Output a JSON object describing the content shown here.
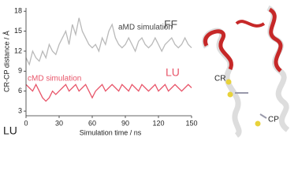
{
  "chart_data": {
    "type": "line",
    "xlabel": "Simulation time / ns",
    "ylabel": "CR-CP distance / Å",
    "x": [
      0,
      3,
      6,
      9,
      12,
      15,
      18,
      21,
      24,
      27,
      30,
      33,
      36,
      39,
      42,
      45,
      48,
      51,
      54,
      57,
      60,
      63,
      66,
      69,
      72,
      75,
      78,
      81,
      84,
      87,
      90,
      93,
      96,
      99,
      102,
      105,
      108,
      111,
      114,
      117,
      120,
      123,
      126,
      129,
      132,
      135,
      138,
      141,
      144,
      147,
      150
    ],
    "series": [
      {
        "name": "aMD simulation",
        "color": "#b9b9b9",
        "values": [
          11,
          10,
          12,
          11,
          10.5,
          12,
          11,
          13,
          12,
          11.5,
          13,
          14,
          15,
          13,
          16,
          14.5,
          17,
          15,
          14,
          13,
          12.5,
          13,
          12,
          14,
          13,
          15,
          16,
          14,
          13,
          12.5,
          13,
          14,
          13,
          12,
          13.5,
          14,
          13,
          12.5,
          13,
          14,
          13,
          12,
          13,
          13.5,
          14,
          13,
          12.5,
          13,
          14,
          13,
          12.5
        ]
      },
      {
        "name": "cMD simulation",
        "color": "#e8566a",
        "values": [
          7,
          6.5,
          6,
          7,
          6,
          5,
          4.5,
          5,
          6,
          5.5,
          6,
          6.5,
          7,
          6,
          6.5,
          7,
          6,
          6.5,
          7,
          6,
          5,
          6,
          6.5,
          7,
          6,
          6.5,
          7,
          6.5,
          6,
          7,
          6.5,
          6,
          7,
          6.5,
          6,
          7,
          6.5,
          6,
          6.5,
          7,
          6,
          6.5,
          7,
          6,
          6.5,
          7,
          6.5,
          6,
          6.5,
          7,
          6.5
        ]
      }
    ],
    "xlim": [
      0,
      150
    ],
    "xticks": [
      0,
      30,
      60,
      90,
      120,
      150
    ],
    "ylim": [
      2.3,
      18.5
    ],
    "yticks": [
      3,
      6,
      9,
      12,
      15,
      18
    ],
    "annotations": {
      "ff": "FF",
      "lu_red": "LU",
      "lu_corner": "LU",
      "cr": "CR",
      "cp": "CP"
    }
  }
}
